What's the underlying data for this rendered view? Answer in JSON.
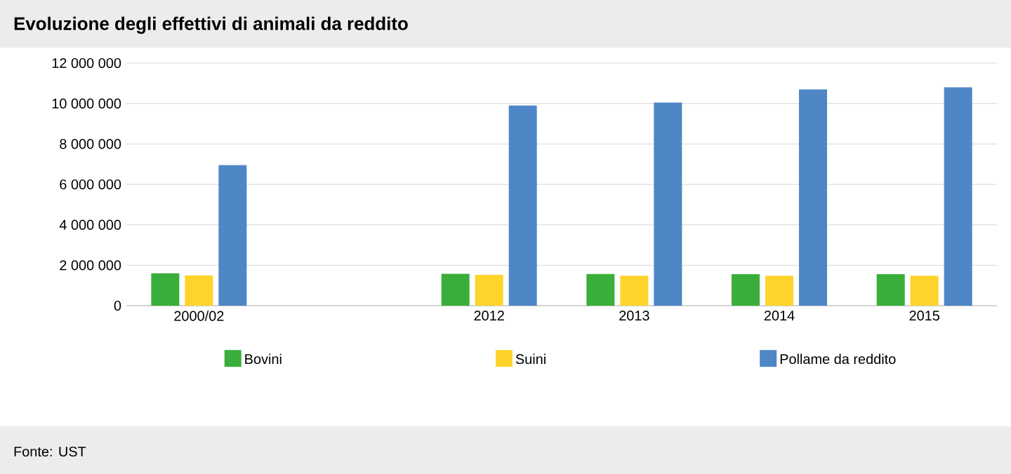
{
  "chart_data": {
    "type": "bar",
    "title": "Evoluzione degli effettivi di animali da reddito",
    "categories": [
      "2000/02",
      null,
      "2012",
      "2013",
      "2014",
      "2015"
    ],
    "series": [
      {
        "name": "Bovini",
        "color": "#3aae3a",
        "values": [
          1600000,
          null,
          1580000,
          1570000,
          1560000,
          1560000
        ]
      },
      {
        "name": "Suini",
        "color": "#ffd42a",
        "values": [
          1500000,
          null,
          1530000,
          1480000,
          1480000,
          1480000
        ]
      },
      {
        "name": "Pollame da reddito",
        "color": "#4f86c6",
        "values": [
          6950000,
          null,
          9900000,
          10050000,
          10700000,
          10800000
        ]
      }
    ],
    "ylim": [
      0,
      12000000
    ],
    "yticks": [
      {
        "value": 0,
        "label": "0"
      },
      {
        "value": 2000000,
        "label": "2 000 000"
      },
      {
        "value": 4000000,
        "label": "4 000 000"
      },
      {
        "value": 6000000,
        "label": "6 000 000"
      },
      {
        "value": 8000000,
        "label": "8 000 000"
      },
      {
        "value": 10000000,
        "label": "10 000 000"
      },
      {
        "value": 12000000,
        "label": "12 000 000"
      }
    ],
    "grid": "y",
    "legend": "bottom",
    "annotations": [
      "Fonte: UST"
    ]
  }
}
